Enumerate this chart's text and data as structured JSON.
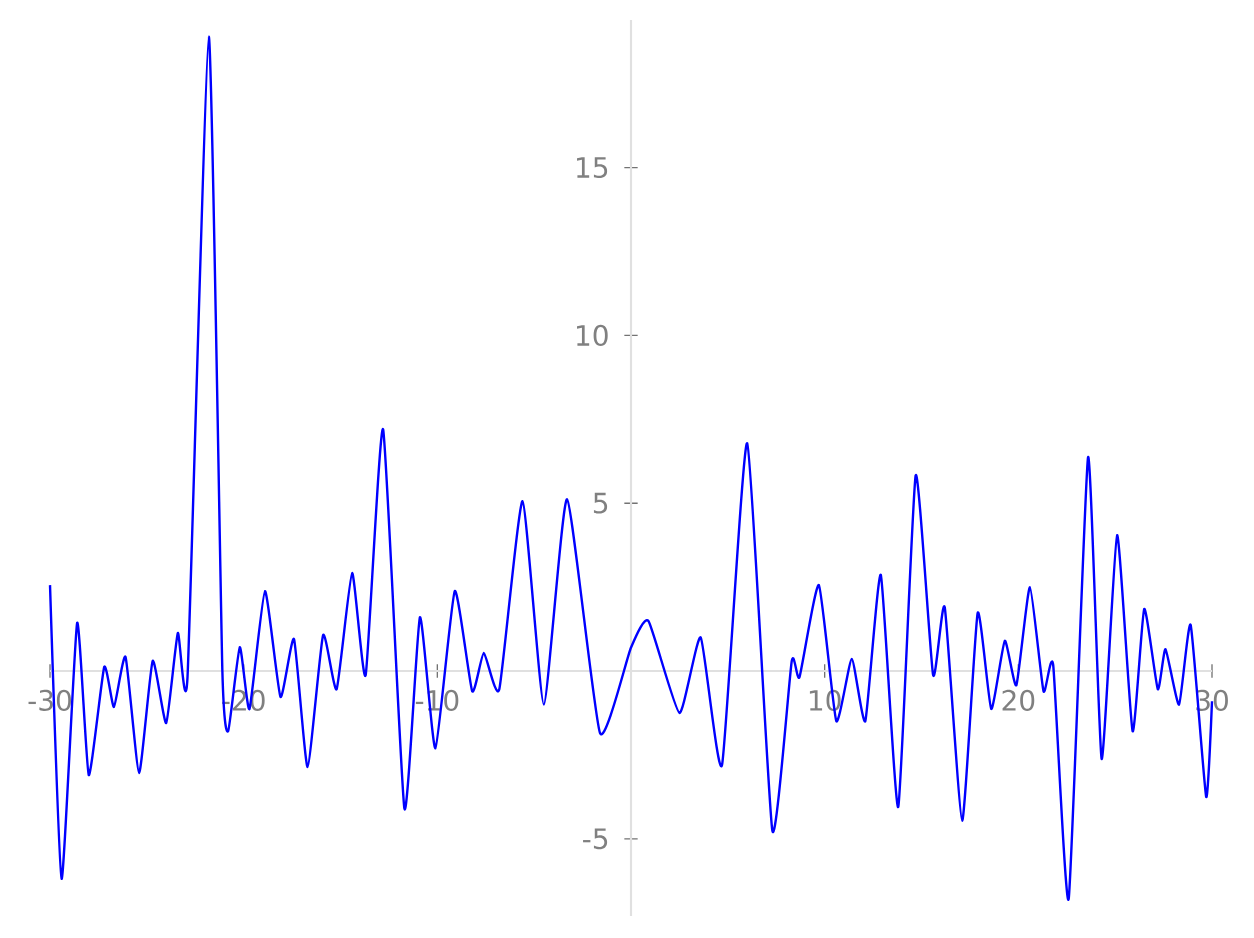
{
  "chart_data": {
    "type": "line",
    "xlim": [
      -30,
      30
    ],
    "ylim": [
      -7.3,
      19.4
    ],
    "xticks": [
      -30,
      -20,
      -10,
      10,
      20,
      30
    ],
    "yticks": [
      -5,
      5,
      10,
      15
    ],
    "grid": false,
    "marker": "none",
    "line_style": "solid",
    "series": [
      {
        "color": "#0000ff",
        "x": [
          -30,
          -29.4,
          -28.6,
          -28.0,
          -27.2,
          -26.7,
          -26.1,
          -25.4,
          -24.7,
          -24.0,
          -23.4,
          -22.9,
          -21.8,
          -21.1,
          -20.8,
          -20.2,
          -19.7,
          -18.9,
          -18.1,
          -17.4,
          -16.7,
          -15.9,
          -15.2,
          -14.4,
          -13.7,
          -12.8,
          -11.7,
          -10.9,
          -10.1,
          -9.1,
          -8.2,
          -7.6,
          -6.8,
          -5.6,
          -4.5,
          -3.3,
          -1.6,
          0,
          0.9,
          2.5,
          3.6,
          4.7,
          6.0,
          7.3,
          8.3,
          8.7,
          9.7,
          10.6,
          11.4,
          12.1,
          12.9,
          13.8,
          14.7,
          15.6,
          16.2,
          17.1,
          17.9,
          18.6,
          19.3,
          19.9,
          20.6,
          21.3,
          21.8,
          22.6,
          23.6,
          24.3,
          25.1,
          25.9,
          26.5,
          27.2,
          27.6,
          28.3,
          28.9,
          29.7,
          30
        ],
        "values": [
          2.56,
          -6.19,
          1.43,
          -3.1,
          0.12,
          -1.07,
          0.42,
          -3.04,
          0.3,
          -1.55,
          1.13,
          -0.18,
          18.9,
          0,
          -1.79,
          0.71,
          -1.13,
          2.38,
          -0.77,
          0.95,
          -2.86,
          1.07,
          -0.54,
          2.92,
          -0.12,
          7.2,
          -4.1,
          1.6,
          -2.3,
          2.38,
          -0.6,
          0.54,
          -0.54,
          5.06,
          -1.0,
          5.12,
          -1.85,
          0.7,
          1.49,
          -1.25,
          1.0,
          -2.8,
          6.79,
          -4.76,
          0.3,
          -0.18,
          2.56,
          -1.49,
          0.36,
          -1.49,
          2.86,
          -4.05,
          5.83,
          -0.12,
          1.9,
          -4.46,
          1.73,
          -1.13,
          0.9,
          -0.42,
          2.5,
          -0.6,
          0.18,
          -6.79,
          6.37,
          -2.62,
          4.05,
          -1.79,
          1.85,
          -0.54,
          0.65,
          -1.0,
          1.37,
          -3.75,
          -0.9
        ]
      }
    ]
  }
}
